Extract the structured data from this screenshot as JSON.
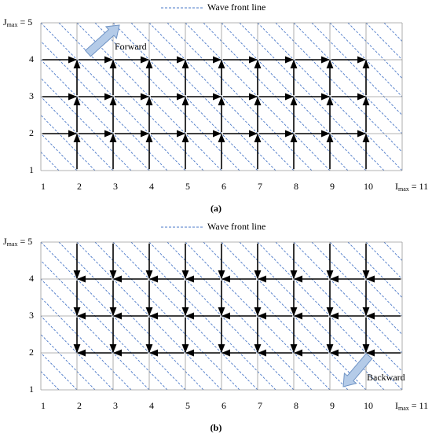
{
  "panels": [
    {
      "legend": "Wave front line",
      "x_labels": [
        1,
        2,
        3,
        4,
        5,
        6,
        7,
        8,
        9,
        10
      ],
      "y_labels": [
        1,
        2,
        3,
        4
      ],
      "j_max": {
        "symbol": "J",
        "subscript": "max",
        "value": "= 5"
      },
      "i_max": {
        "symbol": "I",
        "subscript": "max",
        "value": "= 11"
      },
      "direction": "Forward",
      "caption": "(a)"
    },
    {
      "legend": "Wave front line",
      "x_labels": [
        1,
        2,
        3,
        4,
        5,
        6,
        7,
        8,
        9,
        10
      ],
      "y_labels": [
        1,
        2,
        3,
        4
      ],
      "j_max": {
        "symbol": "J",
        "subscript": "max",
        "value": "= 5"
      },
      "i_max": {
        "symbol": "I",
        "subscript": "max",
        "value": "= 11"
      },
      "direction": "Backward",
      "caption": "(b)"
    }
  ]
}
